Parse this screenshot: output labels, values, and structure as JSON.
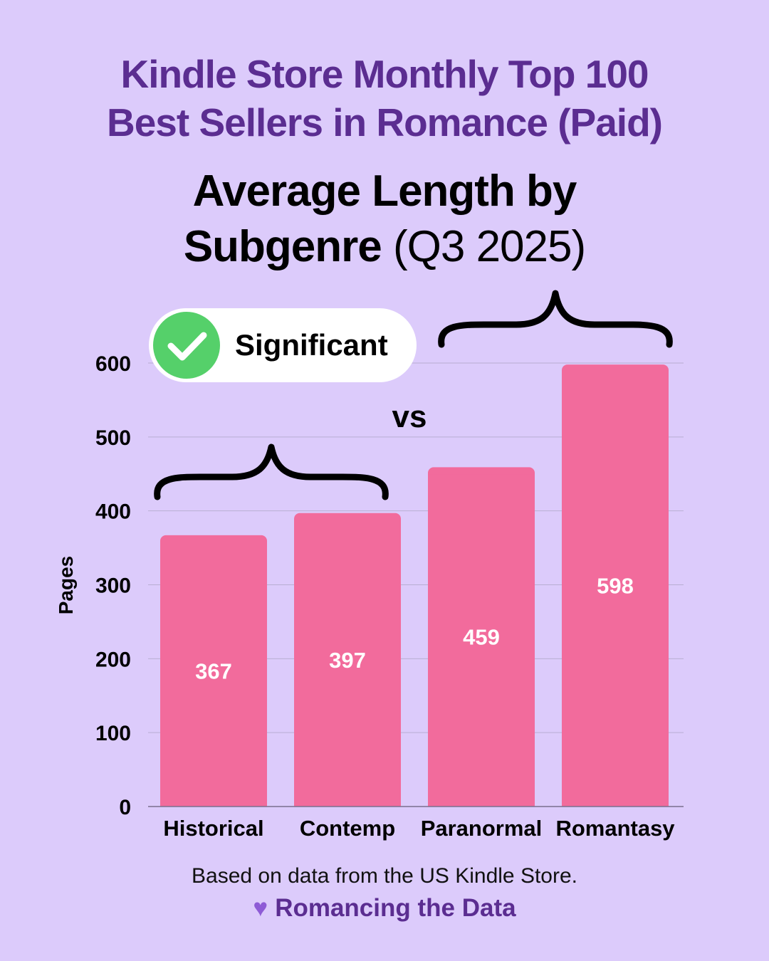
{
  "header": {
    "title_line1": "Kindle Store Monthly Top 100",
    "title_line2": "Best Sellers in Romance (Paid)",
    "subtitle_line1": "Average Length by",
    "subtitle_line2_bold": "Subgenre",
    "subtitle_line2_normal": "(Q3 2025)"
  },
  "annotations": {
    "significant_label": "Significant",
    "vs_label": "vs",
    "significant_color": "#55d06a"
  },
  "colors": {
    "background": "#dccbfb",
    "bar": "#f26b9c",
    "title": "#5b2d91"
  },
  "footer": {
    "note": "Based on data from the US Kindle Store.",
    "brand": "Romancing the Data",
    "heart_icon": "heart-icon"
  },
  "chart_data": {
    "type": "bar",
    "categories": [
      "Historical",
      "Contemp",
      "Paranormal",
      "Romantasy"
    ],
    "values": [
      367,
      397,
      459,
      598
    ],
    "data_labels": [
      "367",
      "397",
      "459",
      "598"
    ],
    "title": "Average Length by Subgenre (Q3 2025)",
    "xlabel": "",
    "ylabel": "Pages",
    "ylim": [
      0,
      600
    ],
    "yticks": [
      "0",
      "100",
      "200",
      "300",
      "400",
      "500",
      "600"
    ],
    "grid": true,
    "legend": "none"
  }
}
